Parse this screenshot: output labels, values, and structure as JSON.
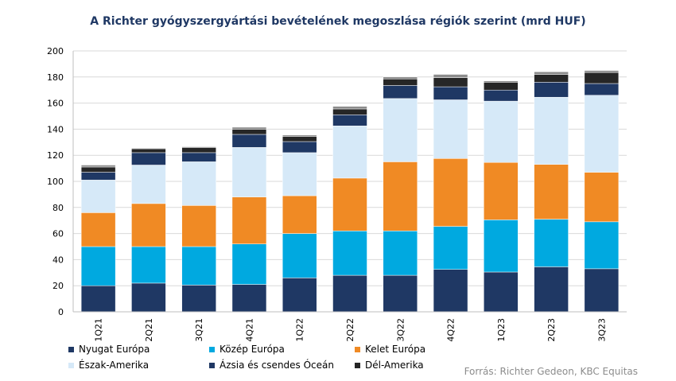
{
  "chart_data": {
    "type": "bar",
    "stacked": true,
    "title": "A Richter gyógyszergyártási bevételének megoszlása régiók szerint (mrd HUF)",
    "categories": [
      "1Q21",
      "2Q21",
      "3Q21",
      "4Q21",
      "1Q22",
      "2Q22",
      "3Q22",
      "4Q22",
      "1Q23",
      "2Q23",
      "3Q23"
    ],
    "ylim": [
      0,
      200
    ],
    "yticks": [
      0,
      20,
      40,
      60,
      80,
      100,
      120,
      140,
      160,
      180,
      200
    ],
    "grid": true,
    "legend_position": "bottom",
    "series": [
      {
        "name": "Nyugat Európa",
        "color": "#1f3864",
        "values": [
          20,
          22,
          20.5,
          21,
          26,
          28,
          28,
          32.5,
          30.5,
          34.5,
          33
        ]
      },
      {
        "name": "Közép Európa",
        "color": "#00a9e0",
        "values": [
          30,
          28,
          29.5,
          31,
          34,
          34,
          34,
          33,
          40,
          36.5,
          36
        ]
      },
      {
        "name": "Kelet Európa",
        "color": "#f08a24",
        "values": [
          26,
          33,
          31.5,
          36,
          29,
          40.5,
          53,
          52,
          44,
          42,
          38
        ]
      },
      {
        "name": "Észak-Amerika",
        "color": "#d6e9f8",
        "values": [
          25,
          29.5,
          33.5,
          38,
          33,
          40,
          48.5,
          45,
          47,
          51.5,
          59
        ]
      },
      {
        "name": "Ázsia és csendes Óceán",
        "color": "#1f3864",
        "values": [
          6,
          9.5,
          7,
          10,
          8.5,
          8.5,
          10,
          10,
          8.5,
          11.5,
          9
        ]
      },
      {
        "name": "Dél-Amerika",
        "color": "#262626",
        "values": [
          4,
          3,
          4,
          4,
          4,
          4.5,
          5,
          7,
          6,
          6,
          8.5
        ]
      },
      {
        "name": "",
        "color": "#8c8c8c",
        "values": [
          1.5,
          0.5,
          0.5,
          1.5,
          1,
          2,
          1.5,
          2.5,
          1,
          2,
          1.5
        ]
      }
    ]
  },
  "source": "Forrás: Richter Gedeon, KBC Equitas"
}
